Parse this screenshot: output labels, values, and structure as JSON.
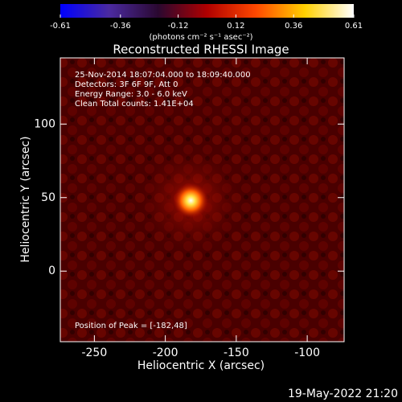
{
  "chart_data": {
    "type": "image",
    "title": "Reconstructed RHESSI Image",
    "x_label": "Heliocentric X (arcsec)",
    "y_label": "Heliocentric Y (arcsec)",
    "xlim": [
      -274,
      -74
    ],
    "ylim": [
      -48,
      145
    ],
    "xticks": [
      -250,
      -200,
      -150,
      -100
    ],
    "yticks": [
      0,
      50,
      100
    ],
    "colorbar": {
      "lim": [
        -0.61,
        0.61
      ],
      "ticks": [
        -0.61,
        -0.36,
        -0.12,
        0.12,
        0.36,
        0.61
      ],
      "label": "(photons cm⁻² s⁻¹ asec⁻²)",
      "colors": [
        "#0000ff",
        "#4b2aa0",
        "#2a0830",
        "#b00000",
        "#ff4800",
        "#ffd000",
        "#ffffff"
      ]
    },
    "peak": {
      "x": -182,
      "y": 48
    },
    "annotations": [
      "25-Nov-2014 18:07:04.000 to 18:09:40.000",
      "Detectors: 3F 6F 9F, Att 0",
      "Energy Range: 3.0 - 6.0 keV",
      "Clean     Total counts: 1.41E+04"
    ],
    "peak_label": "Position of Peak = [-182,48]",
    "timestamp": "19-May-2022 21:20"
  }
}
